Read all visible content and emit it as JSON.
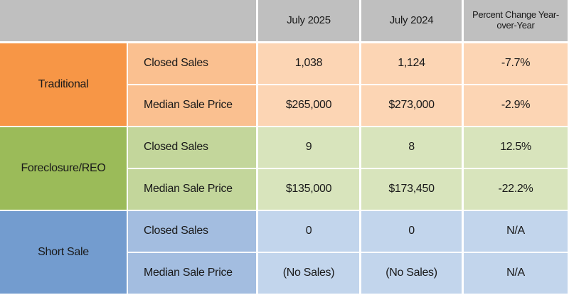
{
  "header": {
    "columns": [
      "July 2025",
      "July 2024",
      "Percent Change Year-over-Year"
    ]
  },
  "groups": [
    {
      "name": "Traditional",
      "rows": [
        {
          "metric": "Closed Sales",
          "values": [
            "1,038",
            "1,124",
            "-7.7%"
          ]
        },
        {
          "metric": "Median Sale Price",
          "values": [
            "$265,000",
            "$273,000",
            "-2.9%"
          ]
        }
      ]
    },
    {
      "name": "Foreclosure/REO",
      "rows": [
        {
          "metric": "Closed Sales",
          "values": [
            "9",
            "8",
            "12.5%"
          ]
        },
        {
          "metric": "Median Sale Price",
          "values": [
            "$135,000",
            "$173,450",
            "-22.2%"
          ]
        }
      ]
    },
    {
      "name": "Short Sale",
      "rows": [
        {
          "metric": "Closed Sales",
          "values": [
            "0",
            "0",
            "N/A"
          ]
        },
        {
          "metric": "Median Sale Price",
          "values": [
            "(No Sales)",
            "(No Sales)",
            "N/A"
          ]
        }
      ]
    }
  ]
}
